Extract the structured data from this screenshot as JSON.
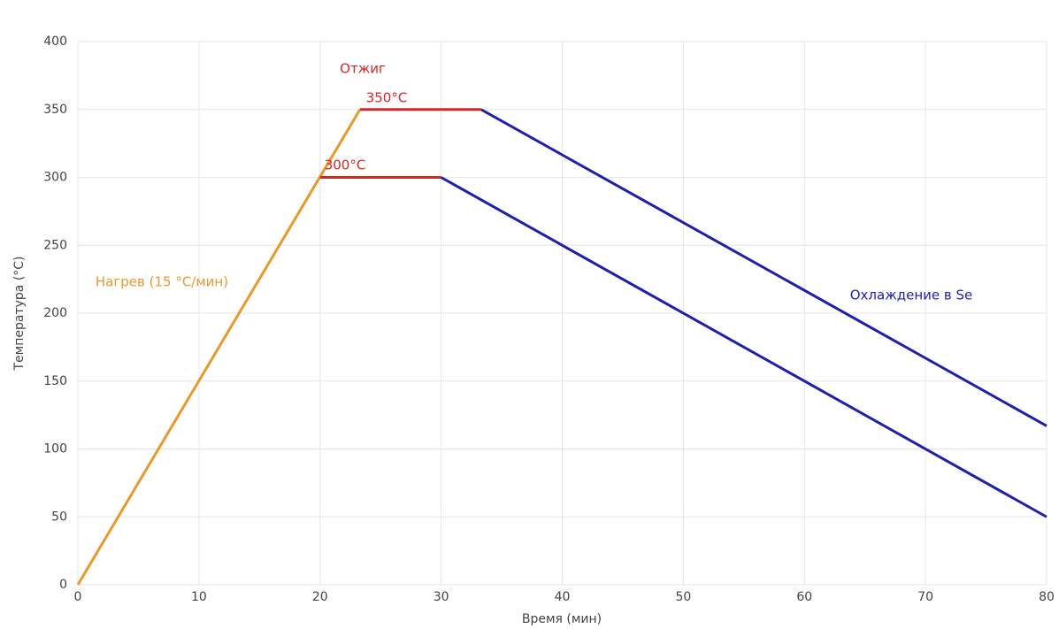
{
  "chart_data": {
    "type": "line",
    "x_label": "Время (мин)",
    "y_label": "Температура (°C)",
    "xlim": [
      0,
      80
    ],
    "ylim": [
      0,
      400
    ],
    "xticks": [
      0,
      10,
      20,
      30,
      40,
      50,
      60,
      70,
      80
    ],
    "yticks": [
      0,
      50,
      100,
      150,
      200,
      250,
      300,
      350,
      400
    ],
    "grid": true,
    "series": [
      {
        "color": "#e69a2e",
        "x": [
          0,
          23.3
        ],
        "values": [
          0,
          350
        ]
      },
      {
        "color": "#d62728",
        "x": [
          23.3,
          33.3
        ],
        "values": [
          350,
          350
        ]
      },
      {
        "color": "#d62728",
        "x": [
          20,
          30
        ],
        "values": [
          300,
          300
        ]
      },
      {
        "color": "#1f1fa8",
        "x": [
          33.3,
          80
        ],
        "values": [
          350,
          117
        ]
      },
      {
        "color": "#1f1fa8",
        "x": [
          30,
          80
        ],
        "values": [
          300,
          50
        ]
      }
    ],
    "annotations": [
      {
        "text": "Отжиг",
        "color": "#d62728"
      },
      {
        "text": "350°C",
        "color": "#d62728"
      },
      {
        "text": "300°C",
        "color": "#d62728"
      },
      {
        "text": "Нагрев (15 °C/мин)",
        "color": "#e69a2e"
      },
      {
        "text": "Охлаждение в Se",
        "color": "#1f1fa8"
      }
    ]
  }
}
